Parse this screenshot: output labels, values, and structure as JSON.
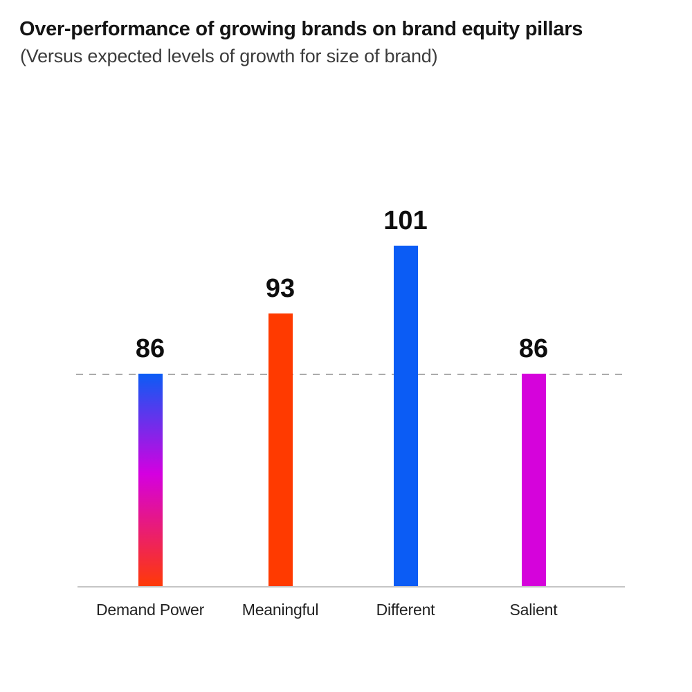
{
  "header": {
    "title": "Over-performance of growing brands on brand equity pillars",
    "subtitle": "(Versus expected levels of growth for size of brand)"
  },
  "chart_data": {
    "type": "bar",
    "title": "Over-performance of growing brands on brand equity pillars",
    "subtitle": "(Versus expected levels of growth for size of brand)",
    "categories": [
      "Demand Power",
      "Meaningful",
      "Different",
      "Salient"
    ],
    "values": [
      86,
      93,
      101,
      86
    ],
    "value_labels": [
      "86",
      "93",
      "101",
      "86"
    ],
    "bar_colors": [
      {
        "type": "gradient",
        "stops": [
          "#0B5CF5",
          "#D400E0",
          "#FF3A05"
        ]
      },
      {
        "type": "solid",
        "stops": [
          "#FF3A00"
        ]
      },
      {
        "type": "solid",
        "stops": [
          "#0B5CF5"
        ]
      },
      {
        "type": "solid",
        "stops": [
          "#D503DB"
        ]
      }
    ],
    "benchmark_line": {
      "value": 86,
      "style": "dashed",
      "color": "#ABABAB"
    },
    "xlabel": "",
    "ylabel": "",
    "ylim": [
      61,
      106
    ],
    "grid": false,
    "legend_position": "none",
    "axis_line_color": "#C5C5C5",
    "value_label_color": "#0E0E0E",
    "category_label_color": "#222222"
  }
}
